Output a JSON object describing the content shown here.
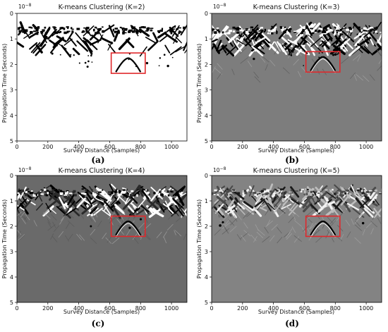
{
  "chart_data": [
    {
      "type": "heatmap",
      "panel_label": "(a)",
      "title": "K-means Clustering (K=2)",
      "xlabel": "Survey Distance (Samples)",
      "ylabel": "Propagation Time (Seconds)",
      "y_scale_factor": "10",
      "y_scale_exponent": "−8",
      "xlim": [
        0,
        1100
      ],
      "ylim": [
        5,
        0
      ],
      "xticks": [
        0,
        200,
        400,
        600,
        800,
        1000
      ],
      "yticks": [
        0,
        1,
        2,
        3,
        4,
        5
      ],
      "background_color": "#ffffff",
      "box_color": "#e0282b",
      "highlight_box": {
        "x": [
          610,
          830
        ],
        "y": [
          1.55,
          2.35
        ]
      }
    },
    {
      "type": "heatmap",
      "panel_label": "(b)",
      "title": "K-means Clustering (K=3)",
      "xlabel": "Survey Distance (Samples)",
      "ylabel": "Propagation Time (Seconds)",
      "y_scale_factor": "10",
      "y_scale_exponent": "−8",
      "xlim": [
        0,
        1100
      ],
      "ylim": [
        5,
        0
      ],
      "xticks": [
        0,
        200,
        400,
        600,
        800,
        1000
      ],
      "yticks": [
        0,
        1,
        2,
        3,
        4,
        5
      ],
      "background_color": "#7d7d7d",
      "box_color": "#e0282b",
      "highlight_box": {
        "x": [
          610,
          830
        ],
        "y": [
          1.5,
          2.3
        ]
      }
    },
    {
      "type": "heatmap",
      "panel_label": "(c)",
      "title": "K-means Clustering (K=4)",
      "xlabel": "Survey Distance (Samples)",
      "ylabel": "Propagation Time (Seconds)",
      "y_scale_factor": "10",
      "y_scale_exponent": "−8",
      "xlim": [
        0,
        1100
      ],
      "ylim": [
        5,
        0
      ],
      "xticks": [
        0,
        200,
        400,
        600,
        800,
        1000
      ],
      "yticks": [
        0,
        1,
        2,
        3,
        4,
        5
      ],
      "background_color": "#6a6a6a",
      "box_color": "#e0282b",
      "highlight_box": {
        "x": [
          610,
          830
        ],
        "y": [
          1.6,
          2.4
        ]
      }
    },
    {
      "type": "heatmap",
      "panel_label": "(d)",
      "title": "K-means Clustering (K=5)",
      "xlabel": "Survey Distance (Samples)",
      "ylabel": "Propagation Time (Seconds)",
      "y_scale_factor": "10",
      "y_scale_exponent": "−8",
      "xlim": [
        0,
        1100
      ],
      "ylim": [
        5,
        0
      ],
      "xticks": [
        0,
        200,
        400,
        600,
        800,
        1000
      ],
      "yticks": [
        0,
        1,
        2,
        3,
        4,
        5
      ],
      "background_color": "#838383",
      "box_color": "#e0282b",
      "highlight_box": {
        "x": [
          610,
          830
        ],
        "y": [
          1.6,
          2.4
        ]
      }
    }
  ]
}
